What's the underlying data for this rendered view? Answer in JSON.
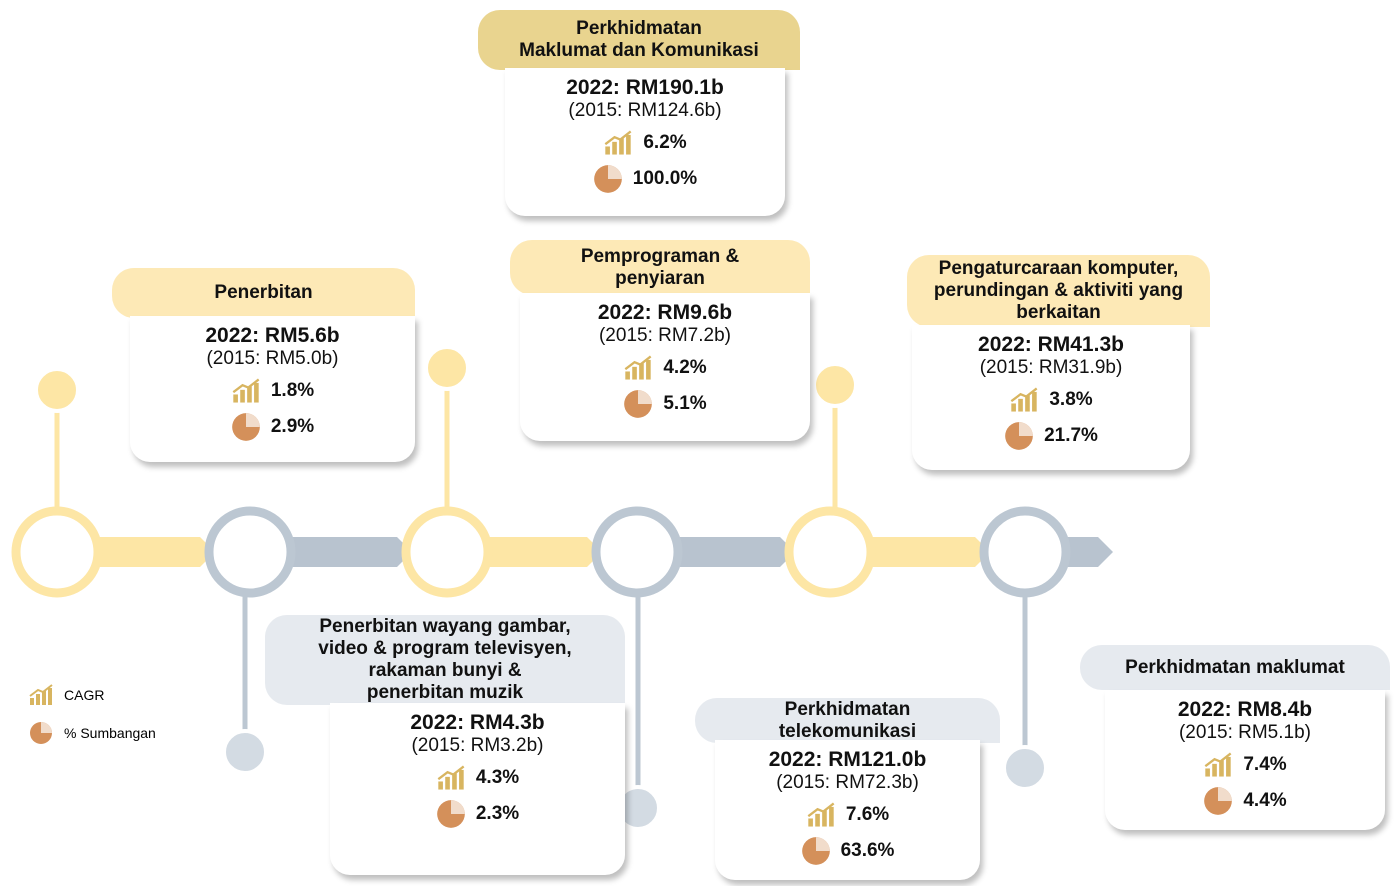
{
  "main": {
    "title_lines": [
      "Perkhidmatan",
      "Maklumat dan Komunikasi"
    ],
    "value_2022": "2022: RM190.1b",
    "value_2015": "(2015: RM124.6b)",
    "cagr": "6.2%",
    "share": "100.0%"
  },
  "cards": [
    {
      "title_lines": [
        "Penerbitan"
      ],
      "value_2022": "2022: RM5.6b",
      "value_2015": "(2015: RM5.0b)",
      "cagr": "1.8%",
      "share": "2.9%"
    },
    {
      "title_lines": [
        "Pemprograman &",
        "penyiaran"
      ],
      "value_2022": "2022: RM9.6b",
      "value_2015": "(2015: RM7.2b)",
      "cagr": "4.2%",
      "share": "5.1%"
    },
    {
      "title_lines": [
        "Pengaturcaraan komputer,",
        "perundingan & aktiviti yang",
        "berkaitan"
      ],
      "value_2022": "2022: RM41.3b",
      "value_2015": "(2015: RM31.9b)",
      "cagr": "3.8%",
      "share": "21.7%"
    },
    {
      "title_lines": [
        "Penerbitan wayang gambar,",
        "video & program televisyen,",
        "rakaman bunyi &",
        "penerbitan muzik"
      ],
      "value_2022": "2022: RM4.3b",
      "value_2015": "(2015: RM3.2b)",
      "cagr": "4.3%",
      "share": "2.3%"
    },
    {
      "title_lines": [
        "Perkhidmatan",
        "telekomunikasi"
      ],
      "value_2022": "2022: RM121.0b",
      "value_2015": "(2015: RM72.3b)",
      "cagr": "7.6%",
      "share": "63.6%"
    },
    {
      "title_lines": [
        "Perkhidmatan maklumat"
      ],
      "value_2022": "2022: RM8.4b",
      "value_2015": "(2015: RM5.1b)",
      "cagr": "7.4%",
      "share": "4.4%"
    }
  ],
  "legend": {
    "cagr": "CAGR",
    "share": "% Sumbangan"
  }
}
